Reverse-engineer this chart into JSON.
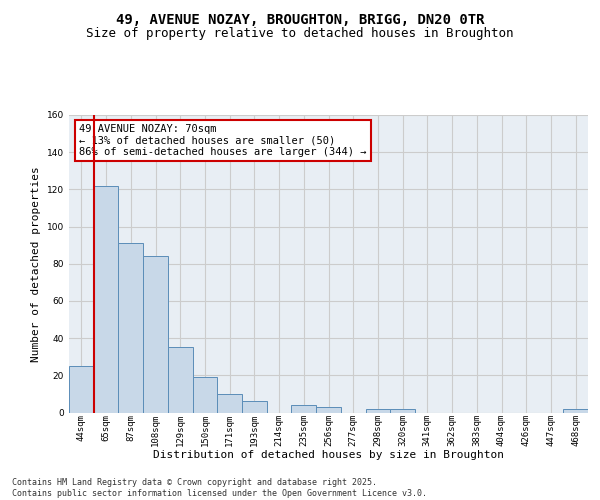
{
  "title_line1": "49, AVENUE NOZAY, BROUGHTON, BRIGG, DN20 0TR",
  "title_line2": "Size of property relative to detached houses in Broughton",
  "xlabel": "Distribution of detached houses by size in Broughton",
  "ylabel": "Number of detached properties",
  "categories": [
    "44sqm",
    "65sqm",
    "87sqm",
    "108sqm",
    "129sqm",
    "150sqm",
    "171sqm",
    "193sqm",
    "214sqm",
    "235sqm",
    "256sqm",
    "277sqm",
    "298sqm",
    "320sqm",
    "341sqm",
    "362sqm",
    "383sqm",
    "404sqm",
    "426sqm",
    "447sqm",
    "468sqm"
  ],
  "values": [
    25,
    122,
    91,
    84,
    35,
    19,
    10,
    6,
    0,
    4,
    3,
    0,
    2,
    2,
    0,
    0,
    0,
    0,
    0,
    0,
    2
  ],
  "bar_color": "#c8d8e8",
  "bar_edge_color": "#5b8db8",
  "highlight_line_color": "#cc0000",
  "annotation_text": "49 AVENUE NOZAY: 70sqm\n← 13% of detached houses are smaller (50)\n86% of semi-detached houses are larger (344) →",
  "annotation_box_color": "#ffffff",
  "annotation_box_edge": "#cc0000",
  "ylim": [
    0,
    160
  ],
  "yticks": [
    0,
    20,
    40,
    60,
    80,
    100,
    120,
    140,
    160
  ],
  "grid_color": "#cccccc",
  "bg_color": "#e8eef4",
  "footer_text": "Contains HM Land Registry data © Crown copyright and database right 2025.\nContains public sector information licensed under the Open Government Licence v3.0.",
  "title_fontsize": 10,
  "subtitle_fontsize": 9,
  "ylabel_fontsize": 8,
  "xlabel_fontsize": 8,
  "tick_fontsize": 6.5,
  "footer_fontsize": 6,
  "annotation_fontsize": 7.5
}
